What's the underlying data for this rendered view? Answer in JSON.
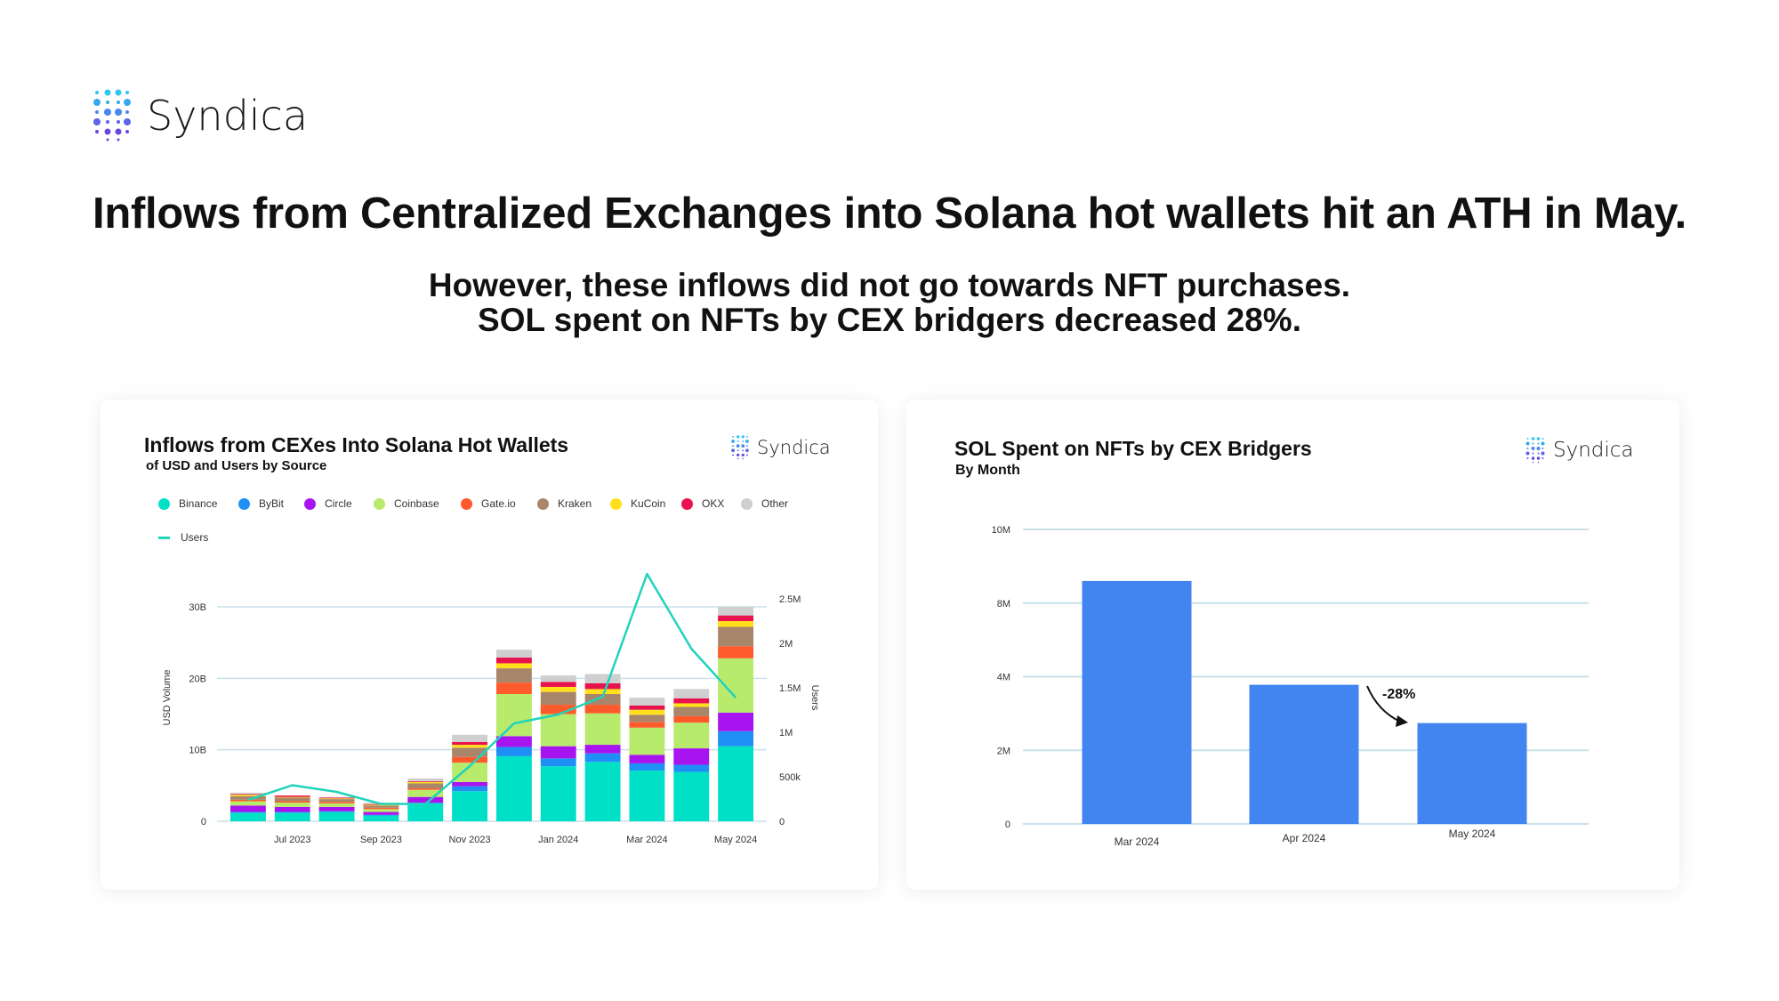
{
  "brand": {
    "name": "Syndica"
  },
  "headline": "Inflows from Centralized Exchanges into Solana hot wallets hit an ATH in May.",
  "subheadline": [
    "However, these inflows did not go towards NFT purchases.",
    "SOL spent on NFTs by CEX bridgers decreased 28%."
  ],
  "colors": {
    "bar_blue": "#4285f0",
    "grid": "#c9e0ea",
    "users_line": "#20d3bd"
  },
  "chart_data": [
    {
      "type": "bar",
      "stacked": true,
      "title": "Inflows from CEXes Into Solana Hot Wallets",
      "subtitle": "of USD and Users by Source",
      "brand": "Syndica",
      "ylabel": "USD Volume",
      "y2label": "Users",
      "ylim": [
        0,
        30
      ],
      "yticks": [
        {
          "v": 0,
          "label": "0"
        },
        {
          "v": 10,
          "label": "10B"
        },
        {
          "v": 20,
          "label": "20B"
        },
        {
          "v": 30,
          "label": "30B"
        }
      ],
      "y2lim": [
        0,
        2500000
      ],
      "y2ticks": [
        {
          "v": 0,
          "label": "0"
        },
        {
          "v": 500000,
          "label": "500k"
        },
        {
          "v": 1000000,
          "label": "1M"
        },
        {
          "v": 1500000,
          "label": "1.5M"
        },
        {
          "v": 2000000,
          "label": "2M"
        },
        {
          "v": 2500000,
          "label": "2.5M"
        }
      ],
      "categories": [
        "Jun 2023",
        "Jul 2023",
        "Aug 2023",
        "Sep 2023",
        "Oct 2023",
        "Nov 2023",
        "Dec 2023",
        "Jan 2024",
        "Feb 2024",
        "Mar 2024",
        "Apr 2024",
        "May 2024"
      ],
      "xtick_labels": [
        {
          "i": 1,
          "label": "Jul 2023"
        },
        {
          "i": 3,
          "label": "Sep 2023"
        },
        {
          "i": 5,
          "label": "Nov 2023"
        },
        {
          "i": 7,
          "label": "Jan 2024"
        },
        {
          "i": 9,
          "label": "Mar 2024"
        },
        {
          "i": 11,
          "label": "May 2024"
        }
      ],
      "unit": "B USD",
      "legend_position": "top-left",
      "series": [
        {
          "name": "Binance",
          "color": "#00e0c6",
          "values": [
            1.2,
            1.2,
            1.3,
            0.8,
            2.5,
            4.2,
            9.1,
            7.7,
            8.3,
            7.1,
            6.9,
            10.5
          ]
        },
        {
          "name": "ByBit",
          "color": "#1e90f5",
          "values": [
            0.1,
            0.1,
            0.1,
            0.1,
            0.1,
            0.7,
            1.3,
            1.1,
            1.2,
            1.0,
            1.0,
            2.1
          ]
        },
        {
          "name": "Circle",
          "color": "#a814f0",
          "values": [
            0.9,
            0.7,
            0.6,
            0.4,
            0.8,
            0.6,
            1.5,
            1.7,
            1.2,
            1.2,
            2.3,
            2.6
          ]
        },
        {
          "name": "Coinbase",
          "color": "#b8ea6c",
          "values": [
            0.6,
            0.6,
            0.5,
            0.4,
            1.0,
            2.7,
            5.9,
            4.5,
            4.4,
            3.8,
            3.6,
            7.6
          ]
        },
        {
          "name": "Gate.io",
          "color": "#ff5a2c",
          "values": [
            0.2,
            0.2,
            0.2,
            0.2,
            0.2,
            0.8,
            1.6,
            1.3,
            1.2,
            0.8,
            0.9,
            1.7
          ]
        },
        {
          "name": "Kraken",
          "color": "#a9856a",
          "values": [
            0.5,
            0.5,
            0.4,
            0.3,
            0.7,
            1.3,
            2.0,
            1.8,
            1.5,
            1.0,
            1.3,
            2.7
          ]
        },
        {
          "name": "KuCoin",
          "color": "#ffe01a",
          "values": [
            0.2,
            0.1,
            0.1,
            0.1,
            0.2,
            0.4,
            0.7,
            0.7,
            0.7,
            0.7,
            0.5,
            0.8
          ]
        },
        {
          "name": "OKX",
          "color": "#e8124f",
          "values": [
            0.1,
            0.2,
            0.1,
            0.1,
            0.1,
            0.4,
            0.8,
            0.7,
            0.8,
            0.6,
            0.7,
            0.8
          ]
        },
        {
          "name": "Other",
          "color": "#cfcfcf",
          "values": [
            0.2,
            0.0,
            0.1,
            0.2,
            0.4,
            1.0,
            1.1,
            0.9,
            1.3,
            1.1,
            1.3,
            1.2
          ]
        }
      ],
      "line_series": {
        "name": "Users",
        "color": "#20d3bd",
        "axis": "right",
        "values": [
          240000,
          405000,
          330000,
          195000,
          195000,
          620000,
          1100000,
          1200000,
          1400000,
          2780000,
          1940000,
          1390000
        ]
      }
    },
    {
      "type": "bar",
      "title": "SOL Spent on NFTs by CEX Bridgers",
      "subtitle": "By Month",
      "brand": "Syndica",
      "categories": [
        "Mar 2024",
        "Apr 2024",
        "May 2024"
      ],
      "values": [
        8600000,
        3780000,
        2740000
      ],
      "color": "#4285f0",
      "yticks": [
        {
          "v": 0,
          "label": "0"
        },
        {
          "v": 2000000,
          "label": "2M"
        },
        {
          "v": 4000000,
          "label": "4M"
        },
        {
          "v": 8000000,
          "label": "8M"
        },
        {
          "v": 10000000,
          "label": "10M"
        }
      ],
      "ylim": [
        0,
        10000000
      ],
      "annotation": {
        "text": "-28%",
        "from": "Apr 2024",
        "to": "May 2024"
      }
    }
  ]
}
